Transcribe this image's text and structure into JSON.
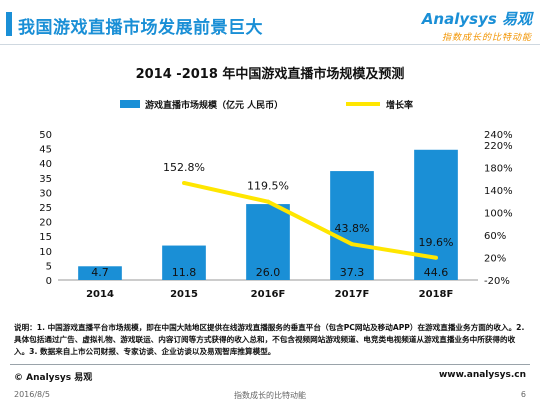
{
  "header": {
    "title": "我国游戏直播市场发展前景巨大",
    "logo_main": "Analysys 易观",
    "logo_sub": "指数成长的比特动能"
  },
  "chart_data": {
    "type": "bar",
    "title": "2014 -2018 年中国游戏直播市场规模及预测",
    "categories": [
      "2014",
      "2015",
      "2016F",
      "2017F",
      "2018F"
    ],
    "series": [
      {
        "name": "游戏直播市场规模（亿元 人民币）",
        "type": "bar",
        "axis": "left",
        "color": "#1a8fd6",
        "values": [
          4.7,
          11.8,
          26.0,
          37.3,
          44.6
        ],
        "labels": [
          "4.7",
          "11.8",
          "26.0",
          "37.3",
          "44.6"
        ]
      },
      {
        "name": "增长率",
        "type": "line",
        "axis": "right",
        "color": "#ffe600",
        "values": [
          null,
          152.8,
          119.5,
          43.8,
          19.6
        ],
        "labels": [
          "",
          "152.8%",
          "119.5%",
          "43.8%",
          "19.6%"
        ]
      }
    ],
    "y_left": {
      "min": 0,
      "max": 50,
      "ticks": [
        "0",
        "5",
        "10",
        "15",
        "20",
        "25",
        "30",
        "35",
        "40",
        "45",
        "50"
      ]
    },
    "y_right": {
      "min": -20,
      "max": 240,
      "ticks": [
        "-20%",
        "20%",
        "60%",
        "100%",
        "140%",
        "180%",
        "220%",
        "240%"
      ],
      "tick_values": [
        -20,
        20,
        60,
        100,
        140,
        180,
        220,
        240
      ]
    },
    "legend_position": "top",
    "grid": false
  },
  "note": "说明：1. 中国游戏直播平台市场规模，即在中国大陆地区提供在线游戏直播服务的垂直平台（包含PC网站及移动APP）在游戏直播业务方面的收入。2. 具体包括通过广告、虚拟礼物、游戏联运、内容订阅等方式获得的收入总和，不包含视频网站游戏频道、电竞类电视频道从游戏直播业务中所获得的收入。3. 数据来自上市公司财报、专家访谈、企业访谈以及易观智库推算模型。",
  "footer": {
    "left": "© Analysys 易观",
    "right": "www.analysys.cn",
    "date": "2016/8/5",
    "slogan": "指数成长的比特动能",
    "page": "6"
  }
}
